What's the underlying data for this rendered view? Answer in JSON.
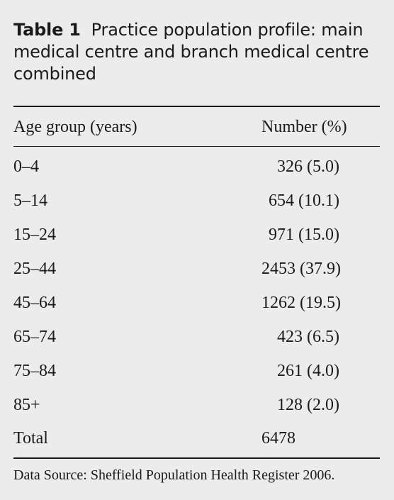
{
  "caption": {
    "label": "Table 1",
    "text": "Practice population profile: main medical centre and branch medical centre combined"
  },
  "table": {
    "headers": {
      "age_group": "Age group (years)",
      "number": "Number (%)"
    },
    "rows": [
      {
        "age": "0–4",
        "number": "326 (5.0)"
      },
      {
        "age": "5–14",
        "number": "654 (10.1)"
      },
      {
        "age": "15–24",
        "number": "971 (15.0)"
      },
      {
        "age": "25–44",
        "number": "2453 (37.9)"
      },
      {
        "age": "45–64",
        "number": "1262 (19.5)"
      },
      {
        "age": "65–74",
        "number": "423 (6.5)"
      },
      {
        "age": "75–84",
        "number": "261 (4.0)"
      },
      {
        "age": "85+",
        "number": "128 (2.0)"
      }
    ],
    "total": {
      "label": "Total",
      "number": "6478"
    }
  },
  "footnote": "Data Source: Sheffield Population Health Register 2006."
}
